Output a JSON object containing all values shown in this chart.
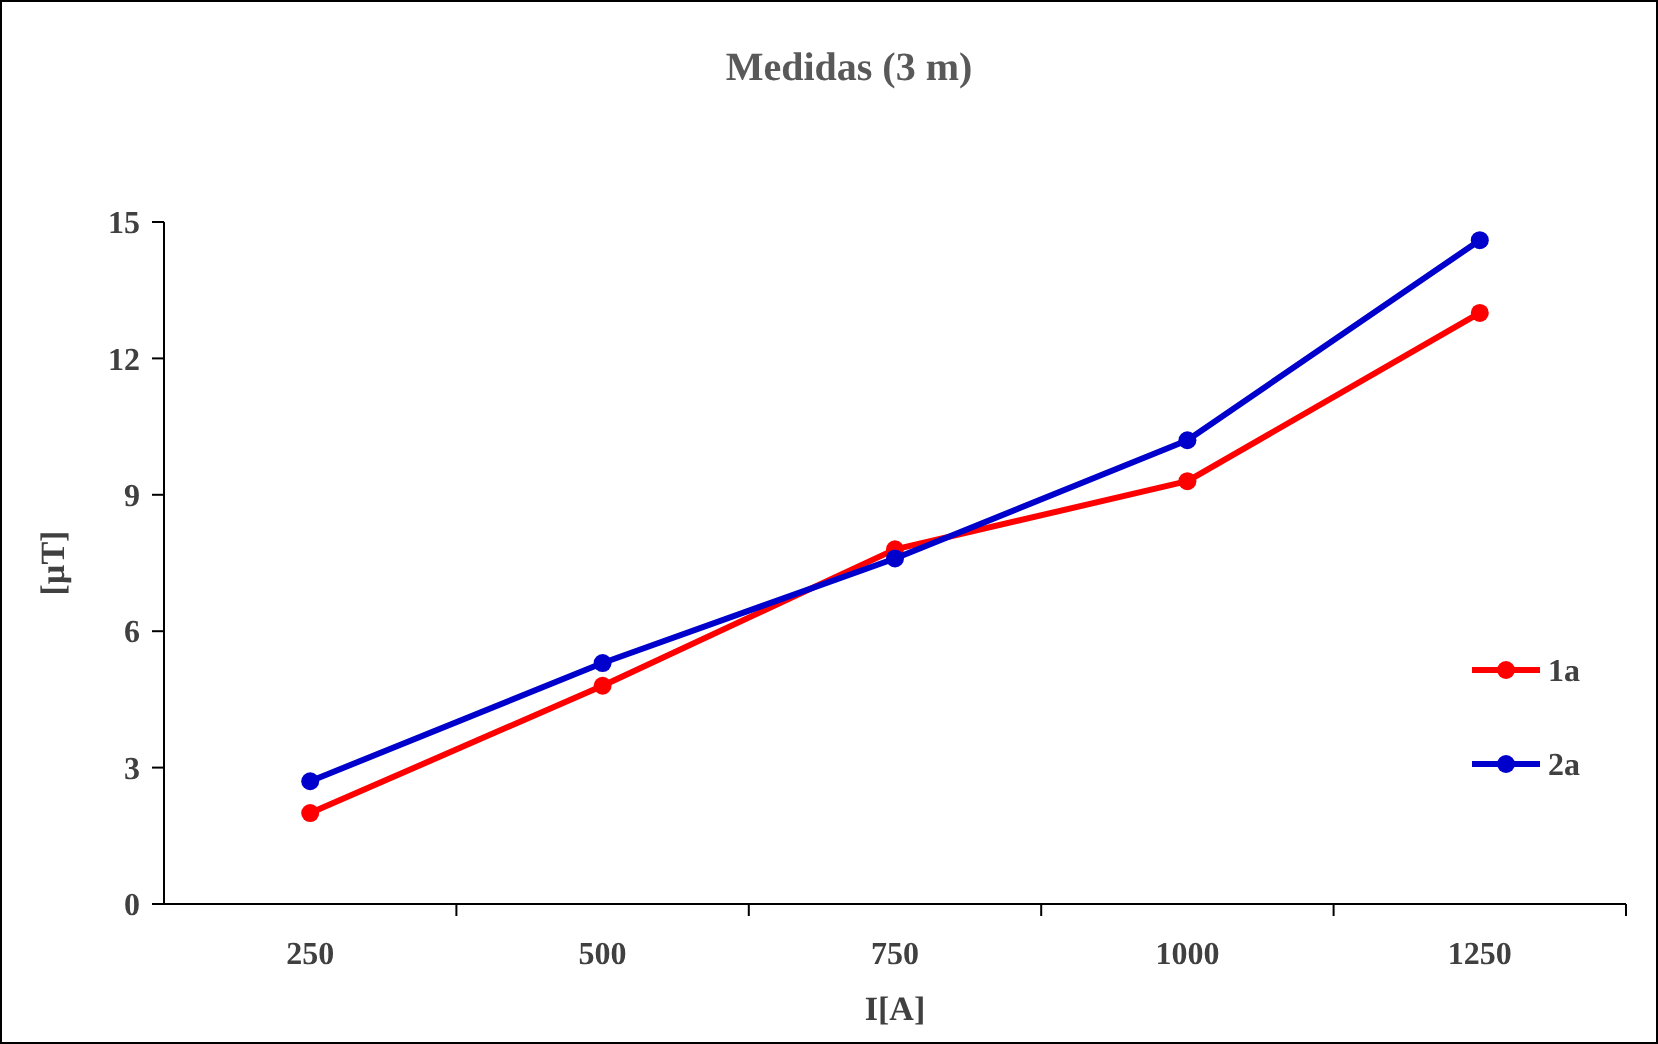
{
  "chart_data": {
    "type": "line",
    "title": "Medidas (3 m)",
    "xlabel": "I[A]",
    "ylabel": "[µT]",
    "categories": [
      "250",
      "500",
      "750",
      "1000",
      "1250"
    ],
    "series": [
      {
        "name": "1a",
        "color": "#ff0000",
        "values": [
          2.0,
          4.8,
          7.8,
          9.3,
          13.0
        ]
      },
      {
        "name": "2a",
        "color": "#0000cc",
        "values": [
          2.7,
          5.3,
          7.6,
          10.2,
          14.6
        ]
      }
    ],
    "ylim": [
      0,
      15
    ],
    "yticks": [
      0,
      3,
      6,
      9,
      12,
      15
    ],
    "grid": false,
    "legend": "right",
    "marker": "circle",
    "line_style": "solid"
  }
}
